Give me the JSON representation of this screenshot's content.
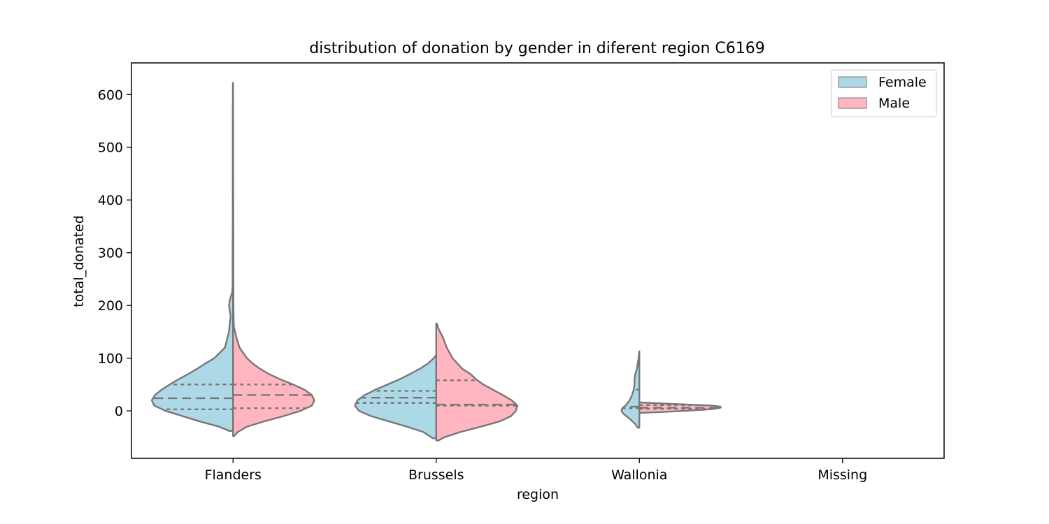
{
  "chart_data": {
    "type": "violin",
    "title": "distribution of donation by gender in diferent region C6169",
    "xlabel": "region",
    "ylabel": "total_donated",
    "categories": [
      "Flanders",
      "Brussels",
      "Wallonia",
      "Missing"
    ],
    "ylim": [
      -90,
      660
    ],
    "yticks": [
      0,
      100,
      200,
      300,
      400,
      500,
      600
    ],
    "legend": {
      "position": "top-right",
      "entries": [
        "Female",
        "Male"
      ]
    },
    "grid": false,
    "series": [
      {
        "name": "Female",
        "color": "#add8e6",
        "side": "left",
        "violins": [
          {
            "category": "Flanders",
            "quartiles": [
              3,
              24,
              50
            ],
            "profile": [
              [
                -38,
                0.05
              ],
              [
                -30,
                0.17
              ],
              [
                -20,
                0.41
              ],
              [
                -10,
                0.62
              ],
              [
                0,
                0.83
              ],
              [
                10,
                0.97
              ],
              [
                20,
                1.0
              ],
              [
                30,
                0.96
              ],
              [
                40,
                0.88
              ],
              [
                50,
                0.78
              ],
              [
                60,
                0.67
              ],
              [
                70,
                0.55
              ],
              [
                80,
                0.44
              ],
              [
                90,
                0.34
              ],
              [
                100,
                0.23
              ],
              [
                120,
                0.1
              ],
              [
                150,
                0.05
              ],
              [
                180,
                0.03
              ],
              [
                200,
                0.05
              ],
              [
                210,
                0.04
              ],
              [
                225,
                0.01
              ],
              [
                240,
                0.005
              ],
              [
                260,
                0.006
              ],
              [
                300,
                0.006
              ],
              [
                350,
                0.004
              ],
              [
                400,
                0.004
              ],
              [
                450,
                0.003
              ],
              [
                500,
                0.003
              ],
              [
                575,
                0.003
              ],
              [
                622,
                0.002
              ]
            ]
          },
          {
            "category": "Brussels",
            "quartiles": [
              15,
              25,
              38
            ],
            "profile": [
              [
                -52,
                0.04
              ],
              [
                -40,
                0.16
              ],
              [
                -30,
                0.36
              ],
              [
                -20,
                0.58
              ],
              [
                -10,
                0.8
              ],
              [
                0,
                0.95
              ],
              [
                10,
                1.0
              ],
              [
                20,
                0.97
              ],
              [
                30,
                0.88
              ],
              [
                40,
                0.75
              ],
              [
                50,
                0.6
              ],
              [
                60,
                0.45
              ],
              [
                70,
                0.32
              ],
              [
                80,
                0.2
              ],
              [
                90,
                0.1
              ],
              [
                100,
                0.03
              ],
              [
                106,
                0.0
              ]
            ]
          },
          {
            "category": "Wallonia",
            "quartiles": [
              5,
              8,
              40
            ],
            "profile": [
              [
                -32,
                0.02
              ],
              [
                -25,
                0.05
              ],
              [
                -15,
                0.12
              ],
              [
                -5,
                0.2
              ],
              [
                0,
                0.22
              ],
              [
                5,
                0.21
              ],
              [
                10,
                0.17
              ],
              [
                20,
                0.12
              ],
              [
                30,
                0.09
              ],
              [
                40,
                0.07
              ],
              [
                50,
                0.06
              ],
              [
                60,
                0.06
              ],
              [
                70,
                0.05
              ],
              [
                80,
                0.03
              ],
              [
                90,
                0.02
              ],
              [
                100,
                0.01
              ],
              [
                110,
                0.004
              ],
              [
                113,
                0.0
              ]
            ]
          }
        ]
      },
      {
        "name": "Male",
        "color": "#ffb6c1",
        "side": "right",
        "violins": [
          {
            "category": "Flanders",
            "quartiles": [
              5,
              30,
              50
            ],
            "profile": [
              [
                -48,
                0.01
              ],
              [
                -40,
                0.06
              ],
              [
                -30,
                0.17
              ],
              [
                -20,
                0.38
              ],
              [
                -10,
                0.62
              ],
              [
                0,
                0.83
              ],
              [
                10,
                0.97
              ],
              [
                20,
                1.0
              ],
              [
                30,
                0.97
              ],
              [
                40,
                0.88
              ],
              [
                50,
                0.74
              ],
              [
                60,
                0.58
              ],
              [
                70,
                0.44
              ],
              [
                80,
                0.33
              ],
              [
                90,
                0.24
              ],
              [
                100,
                0.17
              ],
              [
                120,
                0.08
              ],
              [
                140,
                0.04
              ],
              [
                160,
                0.01
              ],
              [
                180,
                0.006
              ],
              [
                200,
                0.005
              ],
              [
                300,
                0.004
              ],
              [
                400,
                0.003
              ],
              [
                500,
                0.002
              ],
              [
                560,
                0.001
              ],
              [
                600,
                0.0
              ]
            ]
          },
          {
            "category": "Brussels",
            "quartiles": [
              10,
              12,
              58
            ],
            "profile": [
              [
                -56,
                0.03
              ],
              [
                -50,
                0.1
              ],
              [
                -40,
                0.3
              ],
              [
                -30,
                0.55
              ],
              [
                -20,
                0.78
              ],
              [
                -10,
                0.92
              ],
              [
                0,
                0.98
              ],
              [
                10,
                1.0
              ],
              [
                20,
                0.93
              ],
              [
                30,
                0.82
              ],
              [
                40,
                0.7
              ],
              [
                50,
                0.58
              ],
              [
                60,
                0.49
              ],
              [
                70,
                0.42
              ],
              [
                80,
                0.32
              ],
              [
                100,
                0.2
              ],
              [
                120,
                0.13
              ],
              [
                140,
                0.08
              ],
              [
                155,
                0.03
              ],
              [
                165,
                0.01
              ],
              [
                166,
                0.0
              ]
            ]
          },
          {
            "category": "Wallonia",
            "quartiles": [
              4,
              6,
              11
            ],
            "profile": [
              [
                -4,
                0.0
              ],
              [
                -2,
                0.3
              ],
              [
                0,
                0.55
              ],
              [
                2,
                0.78
              ],
              [
                4,
                0.93
              ],
              [
                6,
                1.0
              ],
              [
                8,
                1.0
              ],
              [
                10,
                0.9
              ],
              [
                12,
                0.6
              ],
              [
                14,
                0.3
              ],
              [
                16,
                0.0
              ]
            ]
          }
        ]
      }
    ]
  }
}
